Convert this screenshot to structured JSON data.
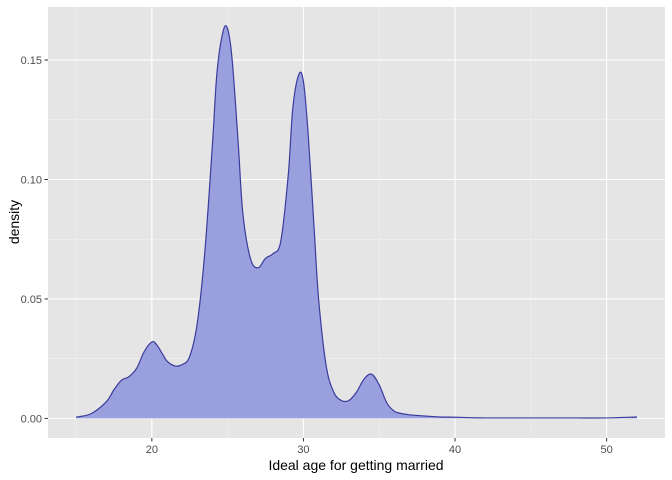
{
  "chart_data": {
    "type": "area",
    "title": "",
    "xlabel": "Ideal age for getting married",
    "ylabel": "density",
    "xlim": [
      13.15,
      53.85
    ],
    "ylim": [
      -0.0082,
      0.1722
    ],
    "x_ticks": [
      20,
      30,
      40,
      50
    ],
    "x_tick_labels": [
      "20",
      "30",
      "40",
      "50"
    ],
    "y_ticks": [
      0,
      0.05,
      0.1,
      0.15
    ],
    "y_tick_labels": [
      "0.00",
      "0.05",
      "0.10",
      "0.15"
    ],
    "grid": true,
    "legend": "none",
    "series": [
      {
        "x": [
          15,
          16,
          17,
          17.5,
          18,
          18.5,
          19,
          19.5,
          20,
          20.3,
          20.7,
          21,
          21.5,
          22,
          22.5,
          23,
          23.5,
          24,
          24.3,
          24.7,
          25,
          25.3,
          25.7,
          26,
          26.5,
          27,
          27.5,
          28,
          28.5,
          29,
          29.3,
          29.7,
          30,
          30.3,
          30.7,
          31,
          31.5,
          32,
          32.5,
          33,
          33.5,
          34,
          34.5,
          35,
          35.5,
          36,
          36.5,
          37,
          38,
          39,
          40,
          41,
          42,
          44,
          46,
          48,
          50,
          52
        ],
        "y": [
          0.0005,
          0.002,
          0.007,
          0.012,
          0.016,
          0.0175,
          0.021,
          0.028,
          0.032,
          0.031,
          0.027,
          0.024,
          0.022,
          0.0225,
          0.026,
          0.04,
          0.07,
          0.115,
          0.145,
          0.162,
          0.163,
          0.15,
          0.115,
          0.086,
          0.067,
          0.063,
          0.067,
          0.069,
          0.074,
          0.102,
          0.13,
          0.144,
          0.141,
          0.12,
          0.08,
          0.05,
          0.022,
          0.011,
          0.0075,
          0.0075,
          0.011,
          0.0165,
          0.0185,
          0.014,
          0.0065,
          0.003,
          0.002,
          0.0015,
          0.001,
          0.0006,
          0.0005,
          0.0003,
          0.0002,
          0.0002,
          0.0002,
          0.0002,
          0.0002,
          0.0006
        ]
      }
    ],
    "colors": {
      "panel": "#e5e5e5",
      "grid_major": "#ffffff",
      "grid_minor": "#f2f2f2",
      "fill": "#9a9fde",
      "line": "#3b3b9c",
      "tick": "#333333"
    }
  }
}
